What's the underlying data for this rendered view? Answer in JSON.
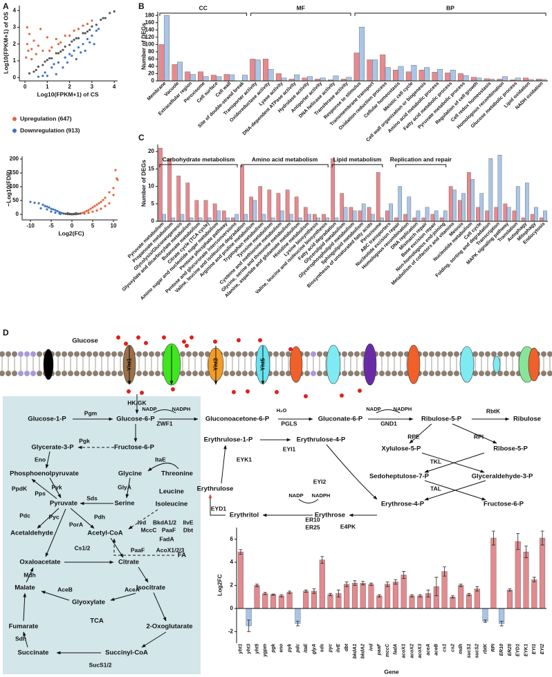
{
  "panel_labels": [
    "A",
    "B",
    "C",
    "D"
  ],
  "chart_data": [
    {
      "type": "scatter",
      "x_label": "Log10(FPKM+1) of CS",
      "y_label": "Log10(FPKM+1) of OS",
      "xlim": [
        -0.25,
        4.15
      ],
      "ylim": [
        -0.2,
        4.3
      ],
      "xticks": [
        0,
        1,
        2,
        3,
        4
      ],
      "yticks": [
        0,
        1,
        2,
        3,
        4
      ],
      "series": [
        {
          "color": "#555555",
          "x": [
            0.2,
            0.4,
            0.6,
            0.8,
            1.0,
            1.2,
            1.4,
            1.6,
            1.8,
            2.0,
            2.2,
            2.4,
            2.6,
            2.8,
            3.0,
            3.2,
            3.4,
            3.6,
            3.8,
            4.0,
            0.5,
            1.1,
            1.7,
            2.3,
            2.9,
            3.5,
            0.9,
            1.5,
            2.1,
            2.7
          ],
          "y": [
            0.25,
            0.35,
            0.65,
            0.75,
            1.05,
            1.15,
            1.45,
            1.55,
            1.85,
            1.95,
            2.25,
            2.35,
            2.65,
            2.75,
            3.05,
            3.15,
            3.45,
            3.55,
            3.85,
            3.95,
            0.45,
            1.15,
            1.65,
            2.35,
            2.85,
            3.55,
            0.95,
            1.45,
            2.15,
            2.65
          ]
        },
        {
          "name": "Upregulation (647)",
          "color": "#e5603e",
          "x": [
            0.05,
            0.1,
            0.15,
            0.2,
            0.3,
            0.4,
            0.5,
            0.6,
            0.8,
            1.0,
            1.2,
            1.4,
            1.6,
            1.8,
            2.0,
            2.2,
            2.4,
            2.6,
            2.8,
            3.0,
            0.1,
            0.3,
            0.7,
            1.1,
            1.5
          ],
          "y": [
            1.2,
            2.0,
            1.6,
            2.6,
            1.1,
            2.2,
            1.4,
            1.9,
            1.6,
            2.4,
            1.8,
            2.3,
            2.1,
            2.5,
            2.5,
            2.8,
            2.9,
            3.1,
            3.2,
            3.4,
            3.0,
            1.7,
            2.9,
            1.6,
            2.0
          ]
        },
        {
          "name": "Downregulation (913)",
          "color": "#3f6fc0",
          "x": [
            0.6,
            0.9,
            1.2,
            1.5,
            1.8,
            2.0,
            2.2,
            2.4,
            2.6,
            2.8,
            3.0,
            3.2,
            1.0,
            1.4,
            1.7,
            2.1,
            2.5,
            2.9,
            3.3,
            1.3,
            1.9,
            2.3,
            2.7,
            3.1,
            0.8
          ],
          "y": [
            0.05,
            0.3,
            0.6,
            0.9,
            1.2,
            1.4,
            1.6,
            1.8,
            2.0,
            2.3,
            2.5,
            2.8,
            0.1,
            0.2,
            0.6,
            1.3,
            1.5,
            2.1,
            2.9,
            0.8,
            0.9,
            1.1,
            1.6,
            2.0,
            0.1
          ]
        }
      ]
    },
    {
      "type": "scatter",
      "x_label": "Log2(FC)",
      "y_label": "−Log10(FDR)",
      "xlim": [
        -12,
        11
      ],
      "ylim": [
        -20,
        210
      ],
      "xticks": [
        -10,
        -5,
        0,
        5,
        10
      ],
      "yticks": [
        0,
        50,
        100,
        150,
        200
      ],
      "series": [
        {
          "color": "#555555",
          "x": [
            -2,
            -1.5,
            -1,
            -0.5,
            0,
            0.5,
            1,
            1.5,
            2,
            -1,
            0,
            1,
            -0.5,
            0.5
          ],
          "y": [
            3,
            2,
            1,
            0.5,
            0,
            0.5,
            1,
            2,
            3,
            4,
            1,
            4,
            2,
            2
          ]
        },
        {
          "color": "#3f6fc0",
          "x": [
            -2.5,
            -3,
            -3.5,
            -4,
            -4.5,
            -5,
            -5.5,
            -6,
            -6.5,
            -7,
            -8,
            -9,
            -3,
            -4,
            -5,
            -2.8,
            -6,
            -7.5,
            -10
          ],
          "y": [
            5,
            8,
            12,
            15,
            18,
            20,
            25,
            28,
            30,
            35,
            40,
            42,
            3,
            6,
            10,
            2,
            18,
            22,
            45
          ]
        },
        {
          "color": "#e5603e",
          "x": [
            2.5,
            3,
            3.5,
            4,
            4.5,
            5,
            5.5,
            6,
            6.5,
            7,
            7.5,
            8,
            9,
            10,
            11,
            3,
            4,
            5,
            6,
            7,
            8,
            9,
            10,
            10.5,
            10.8
          ],
          "y": [
            5,
            8,
            12,
            15,
            20,
            25,
            30,
            35,
            40,
            45,
            52,
            60,
            80,
            95,
            125,
            3,
            6,
            10,
            14,
            20,
            30,
            40,
            70,
            160,
            130
          ]
        }
      ]
    },
    {
      "type": "bar",
      "y_label": "Number of DEGs",
      "ylim": [
        0,
        190
      ],
      "yticks": [
        0,
        20,
        40,
        60,
        80,
        100,
        120,
        140,
        160,
        180
      ],
      "groups": [
        "CC",
        "MF",
        "BP"
      ],
      "categories": [
        "Membrane",
        "Vacuole",
        "Extracellular region",
        "Peroxisome",
        "Cell surface",
        "Cell wall",
        "Site of double-strand break",
        "Transporter activity",
        "Oxidoreductase activity",
        "Lyase activity",
        "DNA-dependent ATPase activity",
        "Hydrolase activity",
        "Antiporter activity",
        "DNA helicase activity",
        "Transferase activity",
        "Response to stimulus",
        "Transmembrane transport",
        "Oxidation-reduction process",
        "Cellular homeostasis",
        "Meiotic cell cycle",
        "Cell wall organization or biogenesis",
        "Amino acid metabolic process",
        "Fatty acid metabolic process",
        "Pyruvate metabolic process",
        "Regulation of cell growth",
        "Cell redox homeostasis",
        "Homologous recombination",
        "Glucose metabolic process",
        "Lipid oxidation",
        "NADH oxidation"
      ],
      "series": [
        {
          "color": "#e8898d",
          "values": [
            100,
            45,
            25,
            25,
            16,
            18,
            0,
            60,
            60,
            20,
            5,
            8,
            5,
            3,
            5,
            77,
            58,
            72,
            30,
            25,
            30,
            24,
            22,
            20,
            10,
            6,
            5,
            3,
            8,
            5
          ]
        },
        {
          "color": "#a9c6e8",
          "values": [
            180,
            52,
            18,
            12,
            12,
            17,
            16,
            58,
            32,
            8,
            17,
            12,
            8,
            14,
            10,
            148,
            58,
            37,
            40,
            43,
            37,
            32,
            30,
            15,
            8,
            5,
            12,
            8,
            4,
            4
          ]
        }
      ]
    },
    {
      "type": "bar",
      "y_label": "Number of DEGs",
      "ylim": [
        0,
        22
      ],
      "yticks": [
        0,
        5,
        10,
        15,
        20
      ],
      "groups": [
        "Carbohydrate metabolism",
        "Amino acid metabolism",
        "Lipid metabolism",
        "Replication and repair"
      ],
      "categories": [
        "Pyruvate metabolism",
        "Propanoate metabolism",
        "Glycolysis/Gluconeogenesis",
        "Glyoxylate and dicarboxylate metabolism",
        "Butanoate metabolism",
        "Citrate cycle (TCA cycle)",
        "Amino sugar and nucleotide sugar metabolism",
        "Pentose phosphate pathway",
        "Pentose and glucuronate interconversions",
        "Valine, leucine and isoleucine degradation",
        "Arginine and proline metabolism",
        "Tryptophan metabolism",
        "Tyrosine metabolism",
        "Cysteine and methionine metabolism",
        "Glycine, serine and threonine metabolism",
        "Alanine, aspartate and glutamate metabolism",
        "Histidine metabolism",
        "Lysine biosynthesis",
        "Valine, leucine and isoleucine biosynthesis",
        "Fatty acid degradation",
        "Glycerolipid metabolism",
        "Glycerophospholipid metabolism",
        "Sphingolipid metabolism",
        "Biosynthesis of unsaturated fatty acids",
        "Peroxisome",
        "ABC transporters",
        "Nucleotide excision repair",
        "Homologous recombination",
        "DNA replication",
        "Mismatch repair",
        "Base excision repair",
        "Non-homologous end-joining",
        "Metabolism of cofactors and vitamins",
        "Meiosis",
        "Nucleotide metabolism",
        "Cell cycle",
        "Folding, sorting and degradation",
        "Transcription",
        "MAPK signaling pathway",
        "Translation",
        "Autophagy",
        "Mitophagy",
        "Endocytosis"
      ],
      "series": [
        {
          "color": "#e8898d",
          "values": [
            21,
            18,
            13,
            11,
            6,
            6,
            5,
            3,
            1,
            16,
            7,
            10,
            9,
            8,
            9,
            7,
            4,
            2,
            2,
            18,
            8,
            4,
            3,
            4,
            14,
            3,
            1,
            2,
            1,
            1,
            2,
            1,
            10,
            6,
            14,
            4,
            3,
            4,
            5,
            3,
            1,
            2,
            1
          ]
        },
        {
          "color": "#a9c6e8",
          "values": [
            2,
            1,
            2,
            1,
            1,
            1,
            3,
            1,
            2,
            2,
            6,
            2,
            1,
            3,
            2,
            1,
            2,
            1,
            1,
            1,
            4,
            3,
            5,
            2,
            1,
            5,
            10,
            7,
            3,
            4,
            3,
            3,
            9,
            8,
            12,
            8,
            18,
            19,
            4,
            10,
            11,
            4,
            3
          ]
        }
      ]
    },
    {
      "type": "bar",
      "x_label": "Gene",
      "y_label": "Log2FC",
      "ylim": [
        -3,
        7
      ],
      "yticks": [
        -2,
        0,
        2,
        4,
        6
      ],
      "categories": [
        "yht1",
        "yht3",
        "yht5",
        "ygpm",
        "pgk",
        "eno",
        "pyk",
        "pdc",
        "itaE",
        "glyA",
        "sds",
        "pyc",
        "ilvE",
        "dbt",
        "bkdA1",
        "bkdA2",
        "ivd",
        "paaF",
        "mccC",
        "fadA",
        "acoX1",
        "acoX2",
        "acoX3",
        "aceA",
        "aceB",
        "cs1",
        "cs2",
        "mdh",
        "sucS1",
        "sucS2",
        "rbtK",
        "RPI",
        "ER10",
        "ER25",
        "EYD1",
        "EYK1",
        "EYI1",
        "EYI2"
      ],
      "series": [
        {
          "color": "#e28a8e",
          "negative_color": "#a9c4e6",
          "values": [
            4.9,
            -1.5,
            2.0,
            1.3,
            1.2,
            1.1,
            1.4,
            -1.3,
            1.5,
            1.5,
            4.2,
            1.2,
            1.3,
            2.1,
            2.2,
            2.2,
            2.1,
            1.1,
            2.1,
            2.3,
            2.9,
            1.1,
            1.1,
            1.3,
            1.9,
            3.2,
            1.0,
            2.0,
            1.2,
            1.7,
            -1.1,
            6.1,
            -1.3,
            1.6,
            5.8,
            4.9,
            2.5,
            6.1
          ],
          "errors": [
            0.2,
            0.5,
            0.1,
            0.1,
            0.05,
            0.1,
            0.1,
            0.2,
            0.1,
            0.2,
            0.3,
            0.1,
            0.3,
            0.2,
            0.2,
            0.15,
            0.1,
            0.1,
            0.2,
            0.2,
            0.3,
            0.1,
            0.1,
            0.3,
            0.8,
            0.4,
            0.1,
            0.1,
            0.1,
            0.2,
            0.1,
            0.6,
            0.2,
            0.1,
            0.7,
            0.5,
            0.2,
            0.6
          ]
        }
      ]
    }
  ],
  "diagram": {
    "substrate": "Glucose",
    "transporters": [
      "Yht1",
      "Yht3",
      "Yht5"
    ],
    "colors": {
      "up": "#e8262a",
      "down": "#4cd137"
    },
    "metabolites": [
      "Glucose-1-P",
      "Glucose-6-P",
      "Glycerate-3-P",
      "Fructose-6-P",
      "Phosphoenolpyruvate",
      "Glycine",
      "Threonine",
      "Pyruvate",
      "Serine",
      "Leucine",
      "Isoleucine",
      "Acetaldehyde",
      "Acetyl-CoA",
      "FA",
      "Oxaloacetate",
      "Citrate",
      "Malate",
      "Isocitrate",
      "Glyoxylate",
      "TCA",
      "Fumarate",
      "2-Oxoglutarate",
      "Succinate",
      "Succinyl-CoA",
      "Gluconoacetone-6-P",
      "Gluconate-6-P",
      "Ribulose-5-P",
      "Ribulose",
      "Xylulose-5-P",
      "Ribose-5-P",
      "Sedoheptulose-7-P",
      "Glyceraldehyde-3-P",
      "Erythrose-4-P",
      "Fructose-6-P",
      "Erythrulose-1-P",
      "Erythrulose-4-P",
      "Erythrulose",
      "Erythritol",
      "Erythrose"
    ],
    "enzymes_up": [
      "Pgm",
      "Pgk",
      "Eno",
      "ItaE",
      "Pyk",
      "GlyA",
      "Sds",
      "Pyc",
      "Ivd",
      "BkdA1/2",
      "IlvE",
      "MccC",
      "PaaF",
      "Dbt",
      "FadA",
      "Cs1/2",
      "PaaF",
      "AcoX1/2/3",
      "Mdh",
      "AceB",
      "AceA",
      "SucS1/2",
      "RPI",
      "EYK1",
      "EYI1",
      "EYI2",
      "EYD1",
      "ER25"
    ],
    "enzymes_down": [
      "Pdc",
      "RbtK",
      "ER10"
    ],
    "enzymes_other": [
      "HK/GK",
      "PpdK",
      "Pps",
      "Pdh",
      "PorA",
      "Sdh",
      "ZWF1",
      "PGLS",
      "GND1",
      "RPE",
      "TKL",
      "TAL",
      "E4PK"
    ],
    "cofactors": [
      "NADP",
      "NADPH",
      "H₂O",
      "NADP",
      "NADPH",
      "NADP",
      "NADPH"
    ]
  }
}
